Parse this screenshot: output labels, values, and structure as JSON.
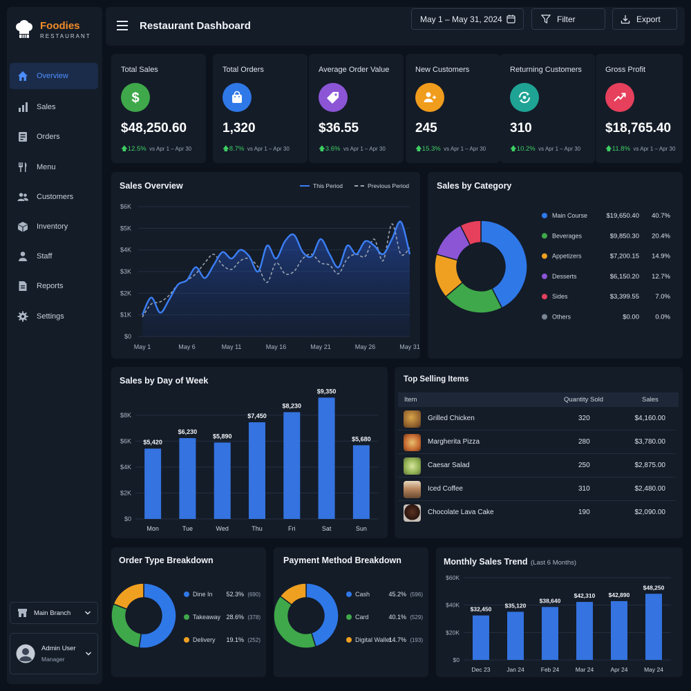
{
  "brand": {
    "name": "Foodies",
    "sub": "RESTAURANT"
  },
  "nav": [
    {
      "label": "Overview",
      "icon": "home-icon"
    },
    {
      "label": "Sales",
      "icon": "bar-chart-icon"
    },
    {
      "label": "Orders",
      "icon": "orders-icon"
    },
    {
      "label": "Menu",
      "icon": "utensils-icon"
    },
    {
      "label": "Customers",
      "icon": "users-icon"
    },
    {
      "label": "Inventory",
      "icon": "box-icon"
    },
    {
      "label": "Staff",
      "icon": "person-icon"
    },
    {
      "label": "Reports",
      "icon": "document-icon"
    },
    {
      "label": "Settings",
      "icon": "gear-icon"
    }
  ],
  "branch": {
    "label": "Main Branch"
  },
  "user": {
    "name": "Admin User",
    "role": "Manager"
  },
  "header": {
    "title": "Restaurant Dashboard",
    "date_range": "May 1 – May 31, 2024",
    "filter": "Filter",
    "export": "Export"
  },
  "kpis": [
    {
      "title": "Total Sales",
      "value": "$48,250.60",
      "change": "12.5%",
      "period": "vs Apr 1 – Apr 30",
      "color": "#3fa84a",
      "icon": "dollar-icon"
    },
    {
      "title": "Total Orders",
      "value": "1,320",
      "change": "8.7%",
      "period": "vs Apr 1 – Apr 30",
      "color": "#2f78e8",
      "icon": "shopping-bag-icon"
    },
    {
      "title": "Average Order Value",
      "value": "$36.55",
      "change": "3.6%",
      "period": "vs Apr 1 – Apr 30",
      "color": "#8b55d6",
      "icon": "tag-icon"
    },
    {
      "title": "New Customers",
      "value": "245",
      "change": "15.3%",
      "period": "vs Apr 1 – Apr 30",
      "color": "#f09c1c",
      "icon": "add-user-icon"
    },
    {
      "title": "Returning Customers",
      "value": "310",
      "change": "10.2%",
      "period": "vs Apr 1 – Apr 30",
      "color": "#1fa394",
      "icon": "repeat-icon"
    },
    {
      "title": "Gross Profit",
      "value": "$18,765.40",
      "change": "11.8%",
      "period": "vs Apr 1 – Apr 30",
      "color": "#e6405c",
      "icon": "trend-up-icon"
    }
  ],
  "sales_overview": {
    "title": "Sales Overview",
    "legend_this": "This Period",
    "legend_prev": "Previous Period"
  },
  "sales_by_category": {
    "title": "Sales by Category"
  },
  "sales_by_day": {
    "title": "Sales by Day of Week"
  },
  "top_selling": {
    "title": "Top Selling Items",
    "columns": [
      "Item",
      "Quantity Sold",
      "Sales"
    ],
    "rows": [
      {
        "item": "Grilled Chicken",
        "qty": "320",
        "sales": "$4,160.00"
      },
      {
        "item": "Margherita Pizza",
        "qty": "280",
        "sales": "$3,780.00"
      },
      {
        "item": "Caesar Salad",
        "qty": "250",
        "sales": "$2,875.00"
      },
      {
        "item": "Iced Coffee",
        "qty": "310",
        "sales": "$2,480.00"
      },
      {
        "item": "Chocolate Lava Cake",
        "qty": "190",
        "sales": "$2,090.00"
      }
    ]
  },
  "order_type": {
    "title": "Order Type Breakdown"
  },
  "payment_method": {
    "title": "Payment Method Breakdown"
  },
  "monthly_trend": {
    "title": "Monthly Sales Trend",
    "subtitle": "(Last 6 Months)"
  },
  "chart_data": [
    {
      "id": "sales_overview",
      "type": "line",
      "ylim": [
        0,
        6000
      ],
      "yticks": [
        "$0",
        "$1K",
        "$2K",
        "$3K",
        "$4K",
        "$5K",
        "$6K"
      ],
      "xticks": [
        "May 1",
        "May 6",
        "May 11",
        "May 16",
        "May 21",
        "May 26",
        "May 31"
      ],
      "x": [
        1,
        2,
        3,
        4,
        5,
        6,
        7,
        8,
        9,
        10,
        11,
        12,
        13,
        14,
        15,
        16,
        17,
        18,
        19,
        20,
        21,
        22,
        23,
        24,
        25,
        26,
        27,
        28,
        29,
        30,
        31
      ],
      "series": [
        {
          "name": "This Period",
          "color": "#3b7ff5",
          "values": [
            1000,
            1800,
            1100,
            1700,
            2400,
            2600,
            3200,
            2700,
            3300,
            3900,
            3600,
            4000,
            3700,
            3000,
            4200,
            3600,
            4400,
            4700,
            3900,
            3700,
            4500,
            3800,
            3200,
            4200,
            3800,
            4400,
            4200,
            3800,
            4500,
            5300,
            3800
          ]
        },
        {
          "name": "Previous Period",
          "color": "#9aa3b0",
          "values": [
            900,
            1500,
            1600,
            1900,
            2400,
            2600,
            2900,
            3400,
            3800,
            3300,
            3100,
            3500,
            3600,
            3200,
            2500,
            3400,
            2900,
            3000,
            3600,
            3800,
            3400,
            3300,
            2900,
            3600,
            3800,
            3700,
            4500,
            3500,
            5200,
            3800,
            4100
          ]
        }
      ]
    },
    {
      "id": "sales_by_category",
      "type": "pie",
      "categories": [
        "Main Course",
        "Beverages",
        "Appetizers",
        "Desserts",
        "Sides",
        "Others"
      ],
      "values": [
        19650.4,
        9850.3,
        7200.15,
        6150.2,
        3399.55,
        0.0
      ],
      "value_labels": [
        "$19,650.40",
        "$9,850.30",
        "$7,200.15",
        "$6,150.20",
        "$3,399.55",
        "$0.00"
      ],
      "percent_labels": [
        "40.7%",
        "20.4%",
        "14.9%",
        "12.7%",
        "7.0%",
        "0.0%"
      ],
      "colors": [
        "#2f78e8",
        "#3fa84a",
        "#f0a020",
        "#8b55d6",
        "#e6405c",
        "#7a8594"
      ]
    },
    {
      "id": "sales_by_day",
      "type": "bar",
      "categories": [
        "Mon",
        "Tue",
        "Wed",
        "Thu",
        "Fri",
        "Sat",
        "Sun"
      ],
      "values": [
        5420,
        6230,
        5890,
        7450,
        8230,
        9350,
        5680
      ],
      "labels": [
        "$5,420",
        "$6,230",
        "$5,890",
        "$7,450",
        "$8,230",
        "$9,350",
        "$5,680"
      ],
      "ylim": [
        0,
        9000
      ],
      "yticks": [
        "$0",
        "$2K",
        "$4K",
        "$6K",
        "$8K"
      ],
      "color": "#3473e0"
    },
    {
      "id": "order_type",
      "type": "pie",
      "categories": [
        "Dine In",
        "Takeaway",
        "Delivery"
      ],
      "values": [
        52.3,
        28.6,
        19.1
      ],
      "percent_labels": [
        "52.3%",
        "28.6%",
        "19.1%"
      ],
      "counts": [
        "(690)",
        "(378)",
        "(252)"
      ],
      "colors": [
        "#2f78e8",
        "#3fa84a",
        "#f0a020"
      ]
    },
    {
      "id": "payment_method",
      "type": "pie",
      "categories": [
        "Cash",
        "Card",
        "Digital Wallet"
      ],
      "values": [
        45.2,
        40.1,
        14.7
      ],
      "percent_labels": [
        "45.2%",
        "40.1%",
        "14.7%"
      ],
      "counts": [
        "(596)",
        "(529)",
        "(193)"
      ],
      "colors": [
        "#2f78e8",
        "#3fa84a",
        "#f0a020"
      ]
    },
    {
      "id": "monthly_trend",
      "type": "bar",
      "categories": [
        "Dec 23",
        "Jan 24",
        "Feb 24",
        "Mar 24",
        "Apr 24",
        "May 24"
      ],
      "values": [
        32450,
        35120,
        38640,
        42310,
        42890,
        48250
      ],
      "labels": [
        "$32,450",
        "$35,120",
        "$38,640",
        "$42,310",
        "$42,890",
        "$48,250"
      ],
      "ylim": [
        0,
        60000
      ],
      "yticks": [
        "$0",
        "$20K",
        "$40K",
        "$60K"
      ],
      "color": "#3473e0"
    }
  ]
}
